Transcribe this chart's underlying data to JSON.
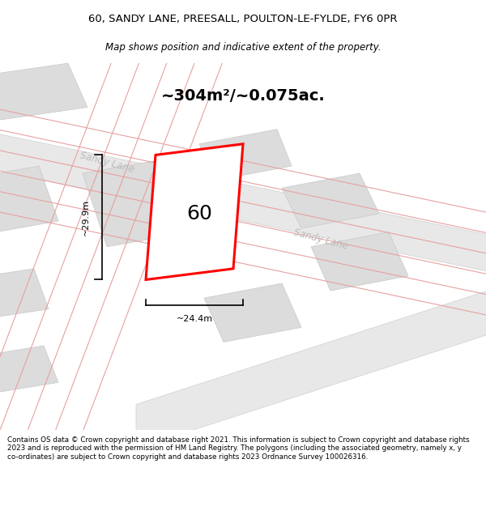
{
  "title_line1": "60, SANDY LANE, PREESALL, POULTON-LE-FYLDE, FY6 0PR",
  "title_line2": "Map shows position and indicative extent of the property.",
  "area_label": "~304m²/~0.075ac.",
  "property_number": "60",
  "dim_width": "~24.4m",
  "dim_height": "~29.9m",
  "street_label1": "Sandy Lane",
  "street_label2": "Sandy Lane",
  "footer_text": "Contains OS data © Crown copyright and database right 2021. This information is subject to Crown copyright and database rights 2023 and is reproduced with the permission of HM Land Registry. The polygons (including the associated geometry, namely x, y co-ordinates) are subject to Crown copyright and database rights 2023 Ordnance Survey 100026316.",
  "map_bg": "#f5f5f5",
  "road_fill": "#e8e8e8",
  "building_fill": "#dcdcdc",
  "building_edge": "#c8c8c8",
  "property_color": "#ff0000",
  "property_fill": "#ffffff",
  "pink_line_color": "#e8a0a0",
  "road_edge": "#d0d0d0",
  "street_label_color": "#bbbbbb",
  "dim_line_color": "#000000"
}
